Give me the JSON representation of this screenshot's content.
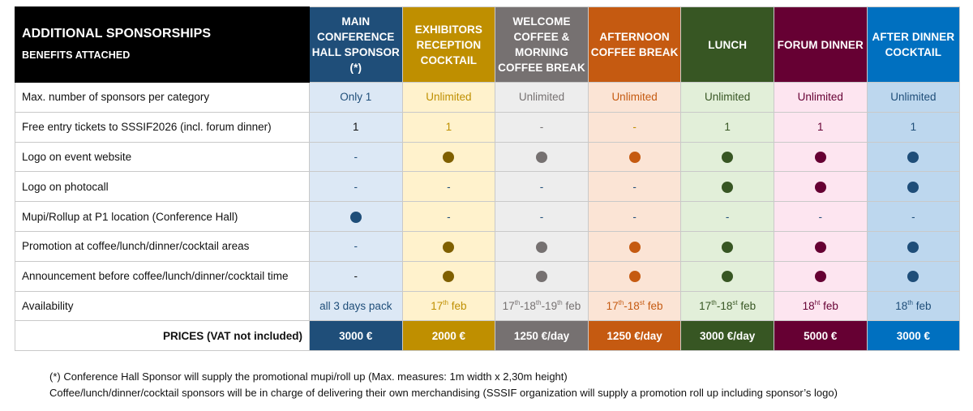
{
  "header": {
    "title": "ADDITIONAL SPONSORSHIPS",
    "subtitle": "BENEFITS ATTACHED"
  },
  "categories": [
    {
      "lines": [
        "MAIN",
        "CONFERENCE",
        "HALL SPONSOR",
        "(*)"
      ],
      "color": "#1f4e79",
      "light": "#dce8f5",
      "text": "#1f4e79",
      "dot": "#1f4e79"
    },
    {
      "lines": [
        "EXHIBITORS",
        "RECEPTION",
        "COCKTAIL"
      ],
      "color": "#bf8f00",
      "light": "#fff2cc",
      "text": "#bf8f00",
      "dot": "#7f6000"
    },
    {
      "lines": [
        "WELCOME",
        "COFFEE &",
        "MORNING",
        "COFFEE BREAK"
      ],
      "color": "#767171",
      "light": "#ededed",
      "text": "#767171",
      "dot": "#767171"
    },
    {
      "lines": [
        "AFTERNOON",
        "COFFEE BREAK"
      ],
      "color": "#c55a11",
      "light": "#fbe4d5",
      "text": "#c55a11",
      "dot": "#c55a11"
    },
    {
      "lines": [
        "LUNCH"
      ],
      "color": "#375623",
      "light": "#e2efd9",
      "text": "#375623",
      "dot": "#375623"
    },
    {
      "lines": [
        "FORUM DINNER"
      ],
      "color": "#660033",
      "light": "#fde5f0",
      "text": "#660033",
      "dot": "#660033"
    },
    {
      "lines": [
        "AFTER DINNER",
        "COCKTAIL"
      ],
      "color": "#0070c0",
      "light": "#bdd7ee",
      "text": "#1f4e79",
      "dot": "#1f4e79"
    }
  ],
  "rows": [
    {
      "label": "Max. number of sponsors per category",
      "cells": [
        {
          "t": "text",
          "v": "Only 1"
        },
        {
          "t": "text",
          "v": "Unlimited"
        },
        {
          "t": "text",
          "v": "Unlimited"
        },
        {
          "t": "text",
          "v": "Unlimited"
        },
        {
          "t": "text",
          "v": "Unlimited"
        },
        {
          "t": "text",
          "v": "Unlimited"
        },
        {
          "t": "text",
          "v": "Unlimited"
        }
      ]
    },
    {
      "label": "Free entry tickets to SSSIF2026 (incl. forum dinner)",
      "cells": [
        {
          "t": "text",
          "v": "1",
          "c": "#111"
        },
        {
          "t": "text",
          "v": "1"
        },
        {
          "t": "dash",
          "v": "-"
        },
        {
          "t": "dash",
          "v": "-",
          "c": "#bf8f00"
        },
        {
          "t": "text",
          "v": "1"
        },
        {
          "t": "text",
          "v": "1"
        },
        {
          "t": "text",
          "v": "1"
        }
      ]
    },
    {
      "label": "Logo on event website",
      "cells": [
        {
          "t": "dash",
          "v": "-",
          "c": "#1f4e79"
        },
        {
          "t": "dot"
        },
        {
          "t": "dot"
        },
        {
          "t": "dot"
        },
        {
          "t": "dot"
        },
        {
          "t": "dot"
        },
        {
          "t": "dot"
        }
      ]
    },
    {
      "label": "Logo on photocall",
      "cells": [
        {
          "t": "dash",
          "v": "-",
          "c": "#1f4e79"
        },
        {
          "t": "dash",
          "v": "-",
          "c": "#1f4e79"
        },
        {
          "t": "dash",
          "v": "-",
          "c": "#1f4e79"
        },
        {
          "t": "dash",
          "v": "-",
          "c": "#1f4e79"
        },
        {
          "t": "dot"
        },
        {
          "t": "dot"
        },
        {
          "t": "dot"
        }
      ]
    },
    {
      "label": "Mupi/Rollup at P1 location (Conference Hall)",
      "cells": [
        {
          "t": "dot"
        },
        {
          "t": "dash",
          "v": "-",
          "c": "#1f4e79"
        },
        {
          "t": "dash",
          "v": "-",
          "c": "#1f4e79"
        },
        {
          "t": "dash",
          "v": "-",
          "c": "#1f4e79"
        },
        {
          "t": "dash",
          "v": "-",
          "c": "#1f4e79"
        },
        {
          "t": "dash",
          "v": "-",
          "c": "#1f4e79"
        },
        {
          "t": "dash",
          "v": "-",
          "c": "#1f4e79"
        }
      ]
    },
    {
      "label": "Promotion at coffee/lunch/dinner/cocktail areas",
      "cells": [
        {
          "t": "dash",
          "v": "-",
          "c": "#1f4e79"
        },
        {
          "t": "dot"
        },
        {
          "t": "dot"
        },
        {
          "t": "dot"
        },
        {
          "t": "dot"
        },
        {
          "t": "dot"
        },
        {
          "t": "dot"
        }
      ]
    },
    {
      "label": "Announcement before coffee/lunch/dinner/cocktail time",
      "cells": [
        {
          "t": "dash",
          "v": "-",
          "c": "#111"
        },
        {
          "t": "dot"
        },
        {
          "t": "dot"
        },
        {
          "t": "dot"
        },
        {
          "t": "dot"
        },
        {
          "t": "dot"
        },
        {
          "t": "dot"
        }
      ]
    },
    {
      "label": "Availability",
      "cells": [
        {
          "t": "date",
          "parts": [
            [
              "all 3 days pack",
              ""
            ]
          ]
        },
        {
          "t": "date",
          "parts": [
            [
              "17",
              "th"
            ],
            [
              " feb",
              ""
            ]
          ]
        },
        {
          "t": "date",
          "parts": [
            [
              "17",
              "th"
            ],
            [
              "-18",
              "th"
            ],
            [
              "-19",
              "th"
            ],
            [
              " feb",
              ""
            ]
          ]
        },
        {
          "t": "date",
          "parts": [
            [
              "17",
              "th"
            ],
            [
              "-18",
              "st"
            ],
            [
              " feb",
              ""
            ]
          ]
        },
        {
          "t": "date",
          "parts": [
            [
              "17",
              "th"
            ],
            [
              "-18",
              "st"
            ],
            [
              " feb",
              ""
            ]
          ]
        },
        {
          "t": "date",
          "parts": [
            [
              "18",
              "ht"
            ],
            [
              " feb",
              ""
            ]
          ]
        },
        {
          "t": "date",
          "parts": [
            [
              "18",
              "th"
            ],
            [
              " feb",
              ""
            ]
          ]
        }
      ]
    }
  ],
  "prices": {
    "label": "PRICES (VAT not included)",
    "values": [
      "3000 €",
      "2000 €",
      "1250 €/day",
      "1250 €/day",
      "3000 €/day",
      "5000 €",
      "3000 €"
    ]
  },
  "notes": [
    "(*) Conference Hall Sponsor will supply the promotional mupi/roll up (Max. measures: 1m width x 2,30m height)",
    "Coffee/lunch/dinner/cocktail sponsors will be in charge of delivering their own merchandising (SSSIF organization will supply a promotion roll up including sponsor’s logo)"
  ]
}
